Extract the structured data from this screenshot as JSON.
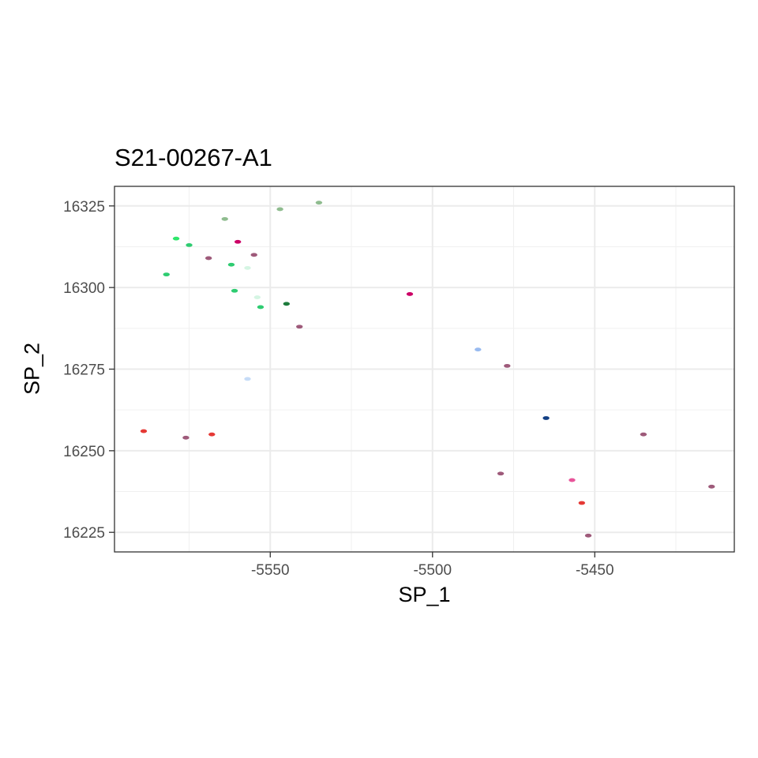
{
  "chart_data": {
    "type": "scatter",
    "title": "S21-00267-A1",
    "xlabel": "SP_1",
    "ylabel": "SP_2",
    "xlim": [
      -5598,
      -5407
    ],
    "ylim": [
      16219,
      16331
    ],
    "x_ticks": [
      -5550,
      -5500,
      -5450
    ],
    "x_tick_labels": [
      "-5550",
      "-5500",
      "-5450"
    ],
    "y_ticks": [
      16225,
      16250,
      16275,
      16300,
      16325
    ],
    "y_tick_labels": [
      "16225",
      "16250",
      "16275",
      "16300",
      "16325"
    ],
    "grid": true,
    "legend": "none",
    "points": [
      {
        "x": -5535,
        "y": 16326,
        "color": "#8fbc8f"
      },
      {
        "x": -5547,
        "y": 16324,
        "color": "#8fbc8f"
      },
      {
        "x": -5564,
        "y": 16321,
        "color": "#8fbc8f"
      },
      {
        "x": -5579,
        "y": 16315,
        "color": "#2ee66b"
      },
      {
        "x": -5560,
        "y": 16314,
        "color": "#cc0066"
      },
      {
        "x": -5575,
        "y": 16313,
        "color": "#2ecc71"
      },
      {
        "x": -5555,
        "y": 16310,
        "color": "#9e5a7a"
      },
      {
        "x": -5569,
        "y": 16309,
        "color": "#9e5a7a"
      },
      {
        "x": -5562,
        "y": 16307,
        "color": "#2ecc71"
      },
      {
        "x": -5557,
        "y": 16306,
        "color": "#d5f5e3"
      },
      {
        "x": -5582,
        "y": 16304,
        "color": "#2ecc71"
      },
      {
        "x": -5561,
        "y": 16299,
        "color": "#2ecc71"
      },
      {
        "x": -5507,
        "y": 16298,
        "color": "#cc0066"
      },
      {
        "x": -5554,
        "y": 16297,
        "color": "#d5f5e3"
      },
      {
        "x": -5545,
        "y": 16295,
        "color": "#1e7b3c"
      },
      {
        "x": -5553,
        "y": 16294,
        "color": "#2ecc71"
      },
      {
        "x": -5541,
        "y": 16288,
        "color": "#9e5a7a"
      },
      {
        "x": -5486,
        "y": 16281,
        "color": "#99bbf0"
      },
      {
        "x": -5477,
        "y": 16276,
        "color": "#9e5a7a"
      },
      {
        "x": -5557,
        "y": 16272,
        "color": "#c6dcf7"
      },
      {
        "x": -5465,
        "y": 16260,
        "color": "#123f84"
      },
      {
        "x": -5589,
        "y": 16256,
        "color": "#e53935"
      },
      {
        "x": -5568,
        "y": 16255,
        "color": "#e53935"
      },
      {
        "x": -5435,
        "y": 16255,
        "color": "#9e5a7a"
      },
      {
        "x": -5576,
        "y": 16254,
        "color": "#9e5a7a"
      },
      {
        "x": -5479,
        "y": 16243,
        "color": "#9e5a7a"
      },
      {
        "x": -5457,
        "y": 16241,
        "color": "#e8559a"
      },
      {
        "x": -5414,
        "y": 16239,
        "color": "#9e5a7a"
      },
      {
        "x": -5454,
        "y": 16234,
        "color": "#e53935"
      },
      {
        "x": -5452,
        "y": 16224,
        "color": "#9e5a7a"
      }
    ]
  }
}
